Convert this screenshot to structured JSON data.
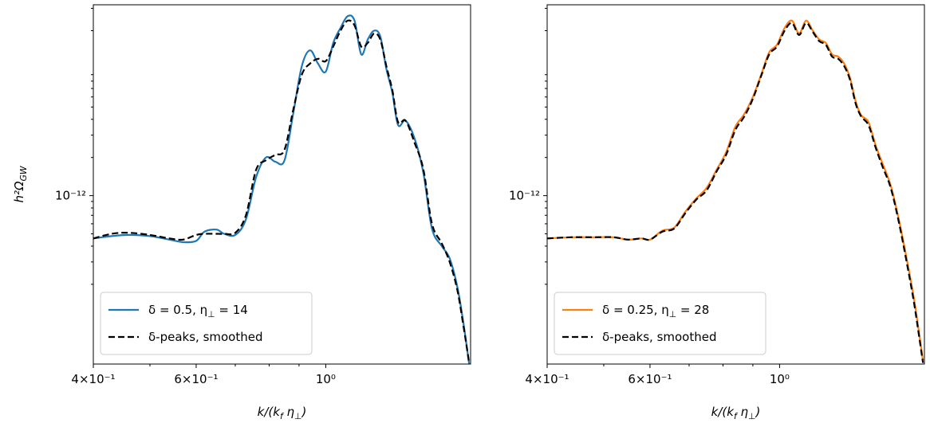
{
  "chart_data": [
    {
      "type": "line",
      "xlabel": "k/(k_f η_⊥)",
      "ylabel": "h²Ω_GW",
      "xscale": "log",
      "yscale": "log",
      "xlim": [
        0.4,
        1.77
      ],
      "ylim": [
        4.7e-14,
        3.2e-11
      ],
      "x_ticks": [
        {
          "value": 0.4,
          "label": "4×10⁻¹"
        },
        {
          "value": 0.6,
          "label": "6×10⁻¹"
        },
        {
          "value": 1.0,
          "label": "10⁰"
        }
      ],
      "y_ticks": [
        {
          "value": 1e-12,
          "label": "10⁻¹²"
        }
      ],
      "legend": {
        "position": "lower-left",
        "entries": [
          "δ = 0.5, η_⊥ = 14",
          "δ-peaks, smoothed"
        ]
      },
      "series": [
        {
          "name": "δ = 0.5, η_⊥ = 14",
          "color": "#1f77b4",
          "style": "solid",
          "x": [
            0.4,
            0.43,
            0.46,
            0.5,
            0.54,
            0.57,
            0.6,
            0.62,
            0.65,
            0.67,
            0.7,
            0.73,
            0.76,
            0.79,
            0.82,
            0.85,
            0.88,
            0.91,
            0.94,
            0.97,
            1.0,
            1.03,
            1.06,
            1.09,
            1.12,
            1.15,
            1.18,
            1.21,
            1.24,
            1.27,
            1.3,
            1.33,
            1.37,
            1.42,
            1.47,
            1.52,
            1.58,
            1.63,
            1.68,
            1.72,
            1.76
          ],
          "y": [
            4.6e-13,
            4.8e-13,
            4.9e-13,
            4.8e-13,
            4.5e-13,
            4.3e-13,
            4.4e-13,
            5.2e-13,
            5.4e-13,
            5e-13,
            4.9e-13,
            6.5e-13,
            1.4e-12,
            2e-12,
            1.85e-12,
            1.9e-12,
            4.5e-12,
            1.05e-11,
            1.4e-11,
            1.1e-11,
            9.5e-12,
            1.6e-11,
            2.1e-11,
            2.6e-11,
            2.4e-11,
            1.3e-11,
            1.7e-11,
            2e-11,
            1.8e-11,
            1e-11,
            6.5e-12,
            3.6e-12,
            3.9e-12,
            2.8e-12,
            1.5e-12,
            5.5e-13,
            4e-13,
            3.2e-13,
            1.9e-13,
            1e-13,
            4.7e-14
          ]
        },
        {
          "name": "δ-peaks, smoothed",
          "color": "#000000",
          "style": "dashed",
          "x": [
            0.4,
            0.43,
            0.46,
            0.5,
            0.54,
            0.57,
            0.6,
            0.62,
            0.65,
            0.67,
            0.7,
            0.73,
            0.76,
            0.79,
            0.82,
            0.85,
            0.88,
            0.91,
            0.94,
            0.97,
            1.0,
            1.03,
            1.06,
            1.09,
            1.12,
            1.15,
            1.18,
            1.21,
            1.24,
            1.27,
            1.3,
            1.33,
            1.37,
            1.42,
            1.47,
            1.52,
            1.58,
            1.63,
            1.68,
            1.72,
            1.76
          ],
          "y": [
            4.6e-13,
            5e-13,
            5.1e-13,
            4.9e-13,
            4.6e-13,
            4.5e-13,
            4.9e-13,
            5e-13,
            5e-13,
            5e-13,
            5.1e-13,
            7e-13,
            1.6e-12,
            1.9e-12,
            2.1e-12,
            2.3e-12,
            4.8e-12,
            9e-12,
            1.1e-11,
            1.2e-11,
            1.15e-11,
            1.5e-11,
            2e-11,
            2.4e-11,
            2.2e-11,
            1.5e-11,
            1.6e-11,
            1.9e-11,
            1.7e-11,
            1.05e-11,
            6.8e-12,
            3.8e-12,
            3.9e-12,
            2.6e-12,
            1.6e-12,
            6e-13,
            4.2e-13,
            3e-13,
            1.8e-13,
            9.5e-14,
            4.8e-14
          ]
        }
      ]
    },
    {
      "type": "line",
      "xlabel": "k/(k_f η_⊥)",
      "ylabel": "",
      "xscale": "log",
      "yscale": "log",
      "xlim": [
        0.4,
        1.77
      ],
      "ylim": [
        4.7e-14,
        3.2e-11
      ],
      "x_ticks": [
        {
          "value": 0.4,
          "label": "4×10⁻¹"
        },
        {
          "value": 0.6,
          "label": "6×10⁻¹"
        },
        {
          "value": 1.0,
          "label": "10⁰"
        }
      ],
      "y_ticks": [
        {
          "value": 1e-12,
          "label": "10⁻¹²"
        }
      ],
      "legend": {
        "position": "lower-left",
        "entries": [
          "δ = 0.25, η_⊥ = 28",
          "δ-peaks, smoothed"
        ]
      },
      "series": [
        {
          "name": "δ = 0.25, η_⊥ = 28",
          "color": "#ff7f0e",
          "style": "solid",
          "x": [
            0.4,
            0.44,
            0.48,
            0.52,
            0.55,
            0.58,
            0.6,
            0.63,
            0.66,
            0.69,
            0.72,
            0.75,
            0.78,
            0.81,
            0.84,
            0.87,
            0.9,
            0.93,
            0.96,
            0.99,
            1.02,
            1.05,
            1.08,
            1.11,
            1.14,
            1.17,
            1.2,
            1.23,
            1.26,
            1.29,
            1.32,
            1.35,
            1.38,
            1.42,
            1.46,
            1.5,
            1.55,
            1.6,
            1.65,
            1.7,
            1.76
          ],
          "y": [
            4.6e-13,
            4.7e-13,
            4.7e-13,
            4.7e-13,
            4.5e-13,
            4.6e-13,
            4.5e-13,
            5.3e-13,
            5.6e-13,
            7.5e-13,
            9.5e-13,
            1.15e-12,
            1.6e-12,
            2.2e-12,
            3.5e-12,
            4.4e-12,
            6e-12,
            9e-12,
            1.35e-11,
            1.55e-11,
            2.1e-11,
            2.4e-11,
            1.9e-11,
            2.4e-11,
            2e-11,
            1.7e-11,
            1.6e-11,
            1.3e-11,
            1.25e-11,
            1.1e-11,
            8.5e-12,
            5.5e-12,
            4.3e-12,
            3.8e-12,
            2.5e-12,
            1.8e-12,
            1.2e-12,
            6.5e-13,
            3.2e-13,
            1.5e-13,
            5e-14
          ]
        },
        {
          "name": "δ-peaks, smoothed",
          "color": "#000000",
          "style": "dashed",
          "x": [
            0.4,
            0.44,
            0.48,
            0.52,
            0.55,
            0.58,
            0.6,
            0.63,
            0.66,
            0.69,
            0.72,
            0.75,
            0.78,
            0.81,
            0.84,
            0.87,
            0.9,
            0.93,
            0.96,
            0.99,
            1.02,
            1.05,
            1.08,
            1.11,
            1.14,
            1.17,
            1.2,
            1.23,
            1.26,
            1.29,
            1.32,
            1.35,
            1.38,
            1.42,
            1.46,
            1.5,
            1.55,
            1.6,
            1.65,
            1.7,
            1.76
          ],
          "y": [
            4.6e-13,
            4.7e-13,
            4.7e-13,
            4.7e-13,
            4.5e-13,
            4.6e-13,
            4.5e-13,
            5.2e-13,
            5.5e-13,
            7.3e-13,
            9.3e-13,
            1.1e-12,
            1.55e-12,
            2.1e-12,
            3.3e-12,
            4.2e-12,
            5.8e-12,
            8.8e-12,
            1.3e-11,
            1.5e-11,
            2e-11,
            2.3e-11,
            1.85e-11,
            2.3e-11,
            1.95e-11,
            1.65e-11,
            1.55e-11,
            1.25e-11,
            1.2e-11,
            1.05e-11,
            8.2e-12,
            5.3e-12,
            4.2e-12,
            3.6e-12,
            2.4e-12,
            1.7e-12,
            1.15e-12,
            6.2e-13,
            3e-13,
            1.4e-13,
            4.8e-14
          ]
        }
      ]
    }
  ]
}
